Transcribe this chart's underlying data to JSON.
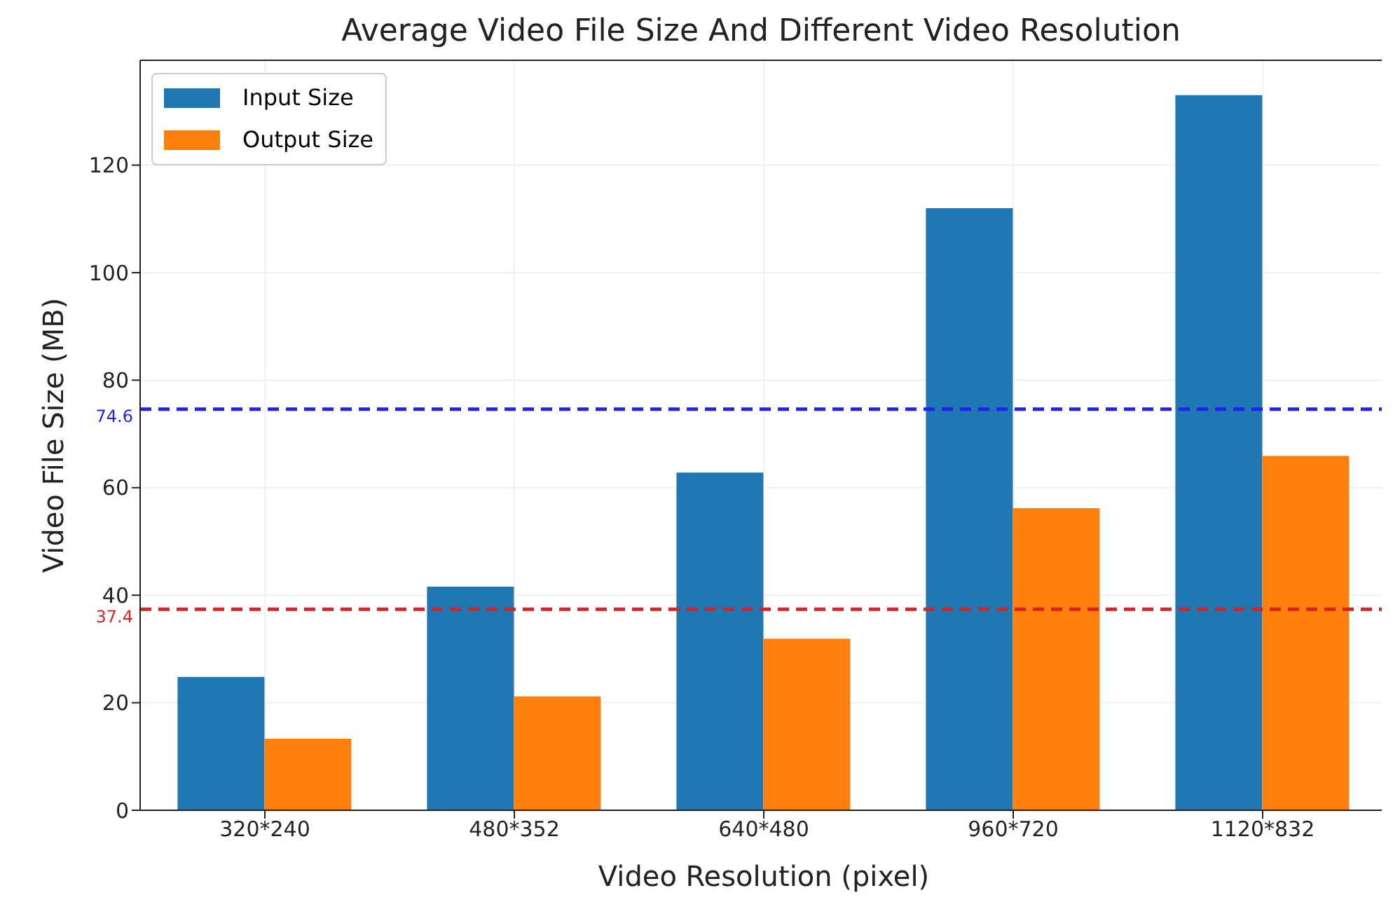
{
  "chart_data": {
    "type": "bar",
    "title": "Average Video File Size And Different Video Resolution",
    "xlabel": "Video Resolution (pixel)",
    "ylabel": "Video File Size (MB)",
    "categories": [
      "320*240",
      "480*352",
      "640*480",
      "960*720",
      "1120*832"
    ],
    "series": [
      {
        "name": "Input Size",
        "color": "#1f77b4",
        "values": [
          24.8,
          41.6,
          62.8,
          112,
          133
        ]
      },
      {
        "name": "Output Size",
        "color": "#ff7f0e",
        "values": [
          13.3,
          21.2,
          31.9,
          56.2,
          65.9
        ]
      }
    ],
    "ylim": [
      0,
      139.5
    ],
    "yticks": [
      0,
      20,
      40,
      60,
      80,
      100,
      120
    ],
    "grid": true,
    "legend": "top left",
    "ref_lines": [
      {
        "axis": "y",
        "value": 74.6,
        "label": "74.6",
        "color": "#2222ee",
        "line_style": "dashed"
      },
      {
        "axis": "y",
        "value": 37.4,
        "label": "37.4",
        "color": "#dd2222",
        "line_style": "dashed"
      }
    ]
  }
}
